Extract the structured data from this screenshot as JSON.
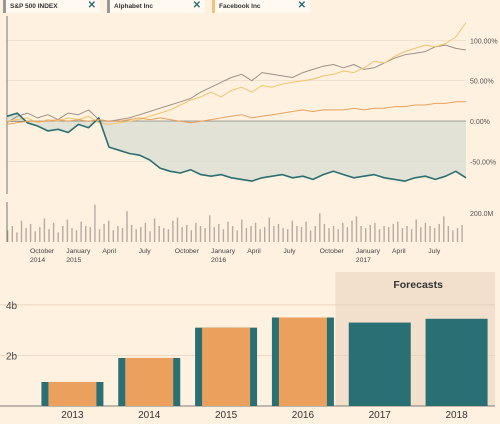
{
  "tabs": [
    {
      "label": "S&P 500 INDEX",
      "color": "#9a9088"
    },
    {
      "label": "Alphabet Inc",
      "color": "#9a9088"
    },
    {
      "label": "Facebook Inc",
      "color": "#f0c27a"
    }
  ],
  "close_glyph": "✕",
  "colors": {
    "sp500": "#9e9186",
    "alphabet": "#f2c46a",
    "facebook": "#2a6f73",
    "volume": "#b7aaa1",
    "bar_dark": "#2a6f73",
    "bar_orange": "#eba15d",
    "forecast_bg": "#f2e0cd"
  },
  "chart_data": [
    {
      "type": "line",
      "y_tick_labels": [
        "100.00%",
        "50.00%",
        "0.00%",
        "-50.00%",
        "200.0M"
      ],
      "y_ticks": [
        100,
        50,
        0,
        -50
      ],
      "ylim": [
        -90,
        130
      ],
      "x_labels": [
        {
          "line1": "October",
          "line2": "2014"
        },
        {
          "line1": "January",
          "line2": "2015"
        },
        {
          "line1": "April",
          "line2": ""
        },
        {
          "line1": "July",
          "line2": ""
        },
        {
          "line1": "October",
          "line2": ""
        },
        {
          "line1": "January",
          "line2": "2016"
        },
        {
          "line1": "April",
          "line2": ""
        },
        {
          "line1": "July",
          "line2": ""
        },
        {
          "line1": "October",
          "line2": ""
        },
        {
          "line1": "January",
          "line2": "2017"
        },
        {
          "line1": "April",
          "line2": ""
        },
        {
          "line1": "July",
          "line2": ""
        }
      ],
      "series": [
        {
          "name": "S&P 500 INDEX",
          "values": [
            -2,
            6,
            10,
            4,
            8,
            2,
            10,
            8,
            14,
            2,
            0,
            2,
            4,
            8,
            12,
            16,
            20,
            24,
            28,
            36,
            42,
            48,
            54,
            58,
            50,
            60,
            58,
            56,
            54,
            60,
            64,
            68,
            70,
            66,
            70,
            64,
            66,
            72,
            78,
            82,
            84,
            86,
            92,
            94,
            90,
            88
          ]
        },
        {
          "name": "Alphabet Inc",
          "values": [
            0,
            2,
            4,
            -2,
            2,
            0,
            4,
            2,
            6,
            -2,
            -4,
            -2,
            0,
            2,
            6,
            10,
            14,
            20,
            26,
            30,
            36,
            30,
            38,
            42,
            36,
            44,
            42,
            46,
            48,
            50,
            52,
            56,
            58,
            62,
            60,
            66,
            74,
            72,
            80,
            86,
            90,
            94,
            92,
            96,
            104,
            122
          ]
        },
        {
          "name": "Facebook Inc",
          "values": [
            6,
            10,
            -2,
            -6,
            -12,
            -10,
            -14,
            -4,
            -8,
            4,
            -32,
            -36,
            -40,
            -42,
            -48,
            -58,
            -62,
            -64,
            -60,
            -66,
            -68,
            -66,
            -70,
            -72,
            -74,
            -70,
            -68,
            -66,
            -70,
            -68,
            -72,
            -66,
            -62,
            -66,
            -70,
            -68,
            -66,
            -70,
            -72,
            -74,
            -70,
            -68,
            -72,
            -68,
            -62,
            -70
          ]
        },
        {
          "name": "Facebook Inc",
          "values": [
            -4,
            -2,
            0,
            0,
            0,
            2,
            0,
            2,
            0,
            2,
            0,
            0,
            2,
            4,
            2,
            4,
            2,
            0,
            -2,
            0,
            2,
            4,
            6,
            8,
            4,
            6,
            8,
            10,
            12,
            14,
            12,
            14,
            14,
            14,
            16,
            14,
            16,
            16,
            18,
            18,
            20,
            20,
            22,
            22,
            24,
            24
          ]
        }
      ],
      "volume": [
        22,
        30,
        18,
        40,
        26,
        34,
        20,
        28,
        44,
        24,
        36,
        18,
        30,
        42,
        26,
        22,
        38,
        30,
        28,
        70,
        24,
        34,
        40,
        22,
        30,
        26,
        58,
        32,
        24,
        28,
        36,
        20,
        44,
        30,
        26,
        24,
        40,
        46,
        28,
        32,
        22,
        36,
        30,
        26,
        50,
        28,
        34,
        24,
        38,
        30,
        22,
        42,
        26,
        30,
        36,
        24,
        28,
        46,
        30,
        34,
        26,
        24,
        40,
        30,
        28,
        38,
        22,
        30,
        54,
        34,
        26,
        30,
        24,
        36,
        28,
        40,
        48,
        30,
        26,
        32,
        36,
        24,
        30,
        28,
        34,
        38,
        26,
        30,
        24,
        42,
        28,
        36,
        30,
        26,
        34,
        48,
        30,
        22,
        26,
        32
      ]
    },
    {
      "type": "bar",
      "categories": [
        "2013",
        "2014",
        "2015",
        "2016",
        "2017",
        "2018"
      ],
      "values": [
        0.95,
        1.9,
        3.1,
        3.5,
        3.3,
        3.45
      ],
      "forecast": [
        false,
        false,
        false,
        false,
        true,
        true
      ],
      "y_tick_labels": [
        "4b",
        "2b"
      ],
      "ylim": [
        0,
        5.3
      ],
      "annotation": "Forecasts"
    }
  ]
}
